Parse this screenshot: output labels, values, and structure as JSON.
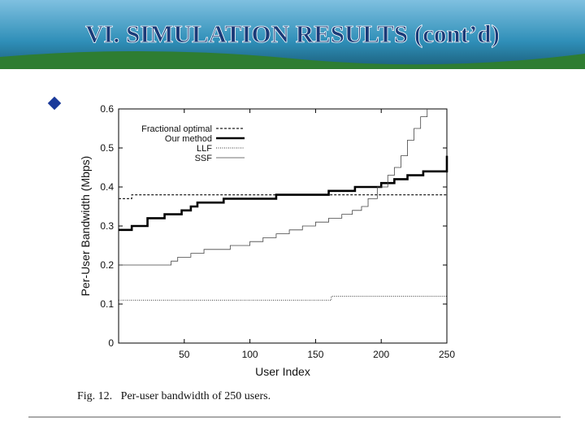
{
  "slide": {
    "title": "VI. SIMULATION RESULTS (cont’d)"
  },
  "chart_data": {
    "type": "line",
    "caption": "Fig. 12.   Per-user bandwidth of 250 users.",
    "xlabel": "User Index",
    "ylabel": "Per-User Bandwidth (Mbps)",
    "xlim": [
      0,
      250
    ],
    "ylim": [
      0,
      0.6
    ],
    "xticks": [
      50,
      100,
      150,
      200,
      250
    ],
    "yticks": [
      0,
      0.1,
      0.2,
      0.3,
      0.4,
      0.5,
      0.6
    ],
    "legend": "upper left",
    "series": [
      {
        "name": "Fractional optimal",
        "color": "#222222",
        "x": [
          0,
          10,
          10,
          250
        ],
        "values": [
          0.37,
          0.37,
          0.38,
          0.38
        ]
      },
      {
        "name": "Our method",
        "color": "#000000",
        "x": [
          0,
          10,
          10,
          22,
          22,
          35,
          35,
          48,
          48,
          55,
          55,
          60,
          60,
          80,
          80,
          120,
          120,
          160,
          160,
          180,
          180,
          200,
          200,
          210,
          210,
          220,
          220,
          232,
          232,
          250,
          250
        ],
        "values": [
          0.29,
          0.29,
          0.3,
          0.3,
          0.32,
          0.32,
          0.33,
          0.33,
          0.34,
          0.34,
          0.35,
          0.35,
          0.36,
          0.36,
          0.37,
          0.37,
          0.38,
          0.38,
          0.39,
          0.39,
          0.4,
          0.4,
          0.41,
          0.41,
          0.42,
          0.42,
          0.43,
          0.43,
          0.44,
          0.44,
          0.48
        ]
      },
      {
        "name": "LLF",
        "color": "#333333",
        "x": [
          0,
          162,
          162,
          250
        ],
        "values": [
          0.11,
          0.11,
          0.12,
          0.12
        ]
      },
      {
        "name": "SSF",
        "color": "#444444",
        "x": [
          0,
          40,
          40,
          45,
          45,
          55,
          55,
          65,
          65,
          85,
          85,
          100,
          100,
          110,
          110,
          120,
          120,
          130,
          130,
          140,
          140,
          150,
          150,
          160,
          160,
          170,
          170,
          178,
          178,
          185,
          185,
          190,
          190,
          197,
          197,
          205,
          205,
          210,
          210,
          215,
          215,
          220,
          220,
          225,
          225,
          230,
          230,
          235,
          235
        ],
        "values": [
          0.2,
          0.2,
          0.21,
          0.21,
          0.22,
          0.22,
          0.23,
          0.23,
          0.24,
          0.24,
          0.25,
          0.25,
          0.26,
          0.26,
          0.27,
          0.27,
          0.28,
          0.28,
          0.29,
          0.29,
          0.3,
          0.3,
          0.31,
          0.31,
          0.32,
          0.32,
          0.33,
          0.33,
          0.34,
          0.34,
          0.35,
          0.35,
          0.37,
          0.37,
          0.4,
          0.4,
          0.43,
          0.43,
          0.45,
          0.45,
          0.48,
          0.48,
          0.52,
          0.52,
          0.55,
          0.55,
          0.58,
          0.58,
          0.6
        ]
      }
    ]
  }
}
